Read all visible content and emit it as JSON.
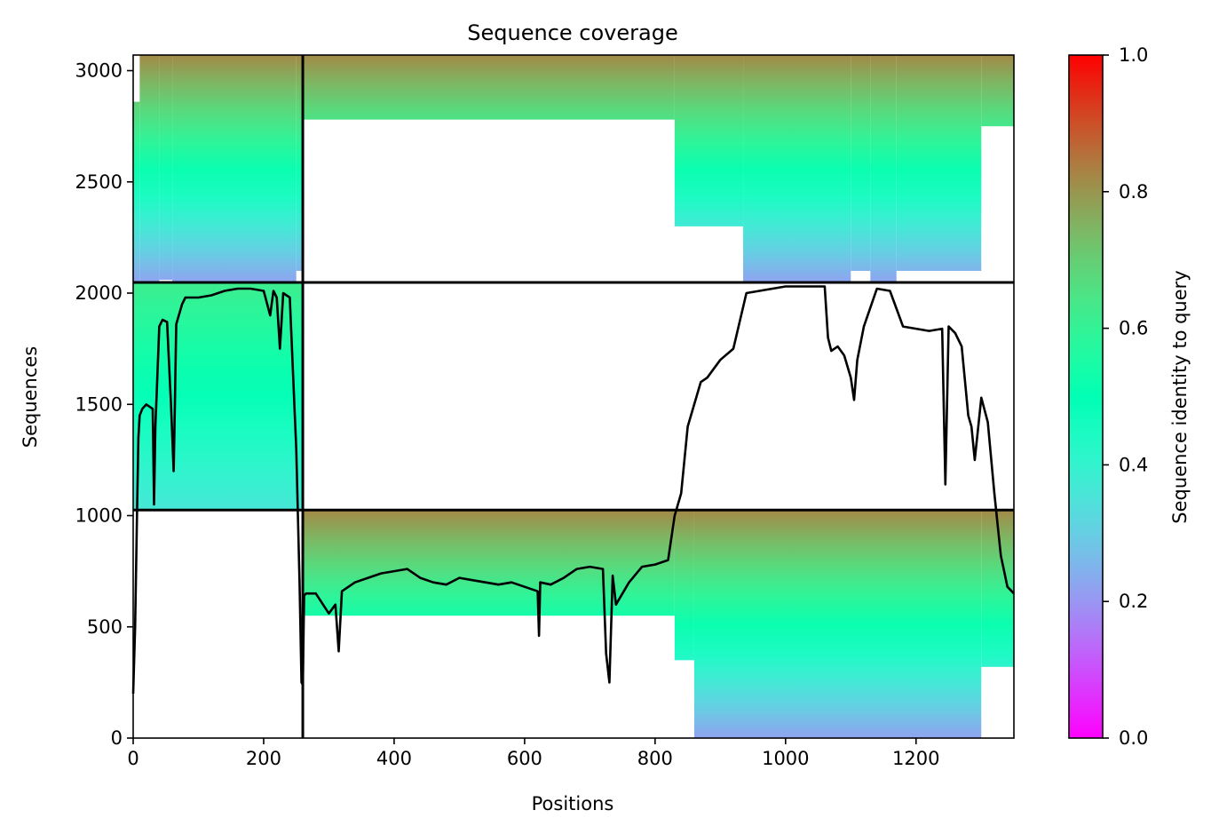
{
  "chart_data": {
    "type": "heatmap",
    "title": "Sequence coverage",
    "xlabel": "Positions",
    "ylabel": "Sequences",
    "colorbar_label": "Sequence identity to query",
    "colormap": "rainbow",
    "xlim": [
      0,
      1350
    ],
    "ylim": [
      0,
      3070
    ],
    "x_ticks": [
      0,
      200,
      400,
      600,
      800,
      1000,
      1200
    ],
    "y_ticks": [
      0,
      500,
      1000,
      1500,
      2000,
      2500,
      3000
    ],
    "colorbar_ticks": [
      0.0,
      0.2,
      0.4,
      0.6,
      0.8,
      1.0
    ],
    "colorbar_range": [
      0,
      1
    ],
    "colorbar_tick_labels": [
      "0.0",
      "0.2",
      "0.4",
      "0.6",
      "0.8",
      "1.0"
    ],
    "chain_boundaries_x": [
      260
    ],
    "block_boundaries_y": [
      1025,
      2048
    ],
    "blocks": [
      {
        "x_range": [
          0,
          260
        ],
        "y_range": [
          2048,
          3070
        ],
        "top_identity": 0.82,
        "bottom_identity": 0.22,
        "columns": [
          {
            "x": [
              0,
              10
            ],
            "y": [
              2048,
              2860
            ]
          },
          {
            "x": [
              10,
              40
            ],
            "y": [
              2048,
              3070
            ]
          },
          {
            "x": [
              40,
              60
            ],
            "y": [
              2060,
              3070
            ]
          },
          {
            "x": [
              60,
              250
            ],
            "y": [
              2048,
              3070
            ]
          },
          {
            "x": [
              250,
              260
            ],
            "y": [
              2100,
              3070
            ]
          }
        ]
      },
      {
        "x_range": [
          260,
          1350
        ],
        "y_range": [
          2048,
          3070
        ],
        "top_identity": 0.82,
        "bottom_identity": 0.22,
        "columns": [
          {
            "x": [
              260,
              830
            ],
            "y": [
              2780,
              3070
            ]
          },
          {
            "x": [
              830,
              935
            ],
            "y": [
              2300,
              3070
            ]
          },
          {
            "x": [
              935,
              1100
            ],
            "y": [
              2048,
              3070
            ]
          },
          {
            "x": [
              1100,
              1130
            ],
            "y": [
              2100,
              3070
            ]
          },
          {
            "x": [
              1130,
              1170
            ],
            "y": [
              2048,
              3070
            ]
          },
          {
            "x": [
              1170,
              1300
            ],
            "y": [
              2100,
              3070
            ]
          },
          {
            "x": [
              1300,
              1350
            ],
            "y": [
              2750,
              3070
            ]
          }
        ]
      },
      {
        "x_range": [
          0,
          260
        ],
        "y_range": [
          1025,
          2048
        ],
        "top_identity": 0.62,
        "bottom_identity": 0.36,
        "columns": [
          {
            "x": [
              0,
              260
            ],
            "y": [
              1025,
              2048
            ]
          }
        ]
      },
      {
        "x_range": [
          260,
          1350
        ],
        "y_range": [
          0,
          1025
        ],
        "top_identity": 0.82,
        "bottom_identity": 0.22,
        "columns": [
          {
            "x": [
              260,
              830
            ],
            "y": [
              550,
              1025
            ]
          },
          {
            "x": [
              830,
              860
            ],
            "y": [
              350,
              1025
            ]
          },
          {
            "x": [
              860,
              1300
            ],
            "y": [
              0,
              1025
            ]
          },
          {
            "x": [
              1300,
              1350
            ],
            "y": [
              320,
              1025
            ]
          }
        ]
      }
    ],
    "series": [
      {
        "type": "line",
        "color": "#000000",
        "x": [
          0,
          3,
          6,
          8,
          10,
          14,
          20,
          30,
          32,
          34,
          36,
          40,
          45,
          52,
          58,
          62,
          64,
          66,
          70,
          75,
          80,
          100,
          120,
          140,
          160,
          180,
          200,
          210,
          215,
          220,
          225,
          230,
          240,
          250,
          255,
          258,
          260,
          262,
          265,
          280,
          300,
          310,
          315,
          320,
          340,
          360,
          380,
          400,
          420,
          440,
          460,
          480,
          500,
          520,
          540,
          560,
          580,
          600,
          620,
          622,
          624,
          640,
          660,
          680,
          700,
          720,
          725,
          730,
          735,
          740,
          760,
          780,
          800,
          820,
          830,
          840,
          850,
          870,
          880,
          900,
          920,
          940,
          960,
          980,
          1000,
          1020,
          1040,
          1060,
          1065,
          1070,
          1080,
          1090,
          1100,
          1105,
          1110,
          1120,
          1140,
          1160,
          1180,
          1200,
          1220,
          1240,
          1245,
          1250,
          1260,
          1270,
          1280,
          1285,
          1290,
          1300,
          1310,
          1320,
          1330,
          1340,
          1350
        ],
        "y": [
          200,
          500,
          1025,
          1350,
          1450,
          1480,
          1500,
          1480,
          1050,
          1400,
          1550,
          1850,
          1880,
          1870,
          1500,
          1200,
          1500,
          1860,
          1900,
          1950,
          1980,
          1980,
          1990,
          2010,
          2020,
          2020,
          2010,
          1900,
          2010,
          1980,
          1750,
          2000,
          1980,
          1300,
          700,
          250,
          240,
          640,
          650,
          650,
          560,
          600,
          390,
          660,
          700,
          720,
          740,
          750,
          760,
          720,
          700,
          690,
          720,
          710,
          700,
          690,
          700,
          680,
          660,
          460,
          700,
          690,
          720,
          760,
          770,
          760,
          380,
          250,
          730,
          600,
          700,
          770,
          780,
          800,
          1000,
          1100,
          1400,
          1600,
          1620,
          1700,
          1750,
          2000,
          2010,
          2020,
          2030,
          2030,
          2030,
          2030,
          1800,
          1740,
          1760,
          1720,
          1620,
          1520,
          1700,
          1850,
          2020,
          2010,
          1850,
          1840,
          1830,
          1840,
          1140,
          1850,
          1820,
          1760,
          1450,
          1400,
          1250,
          1530,
          1420,
          1100,
          820,
          680,
          650
        ]
      }
    ],
    "legend": "none",
    "grid": false
  }
}
